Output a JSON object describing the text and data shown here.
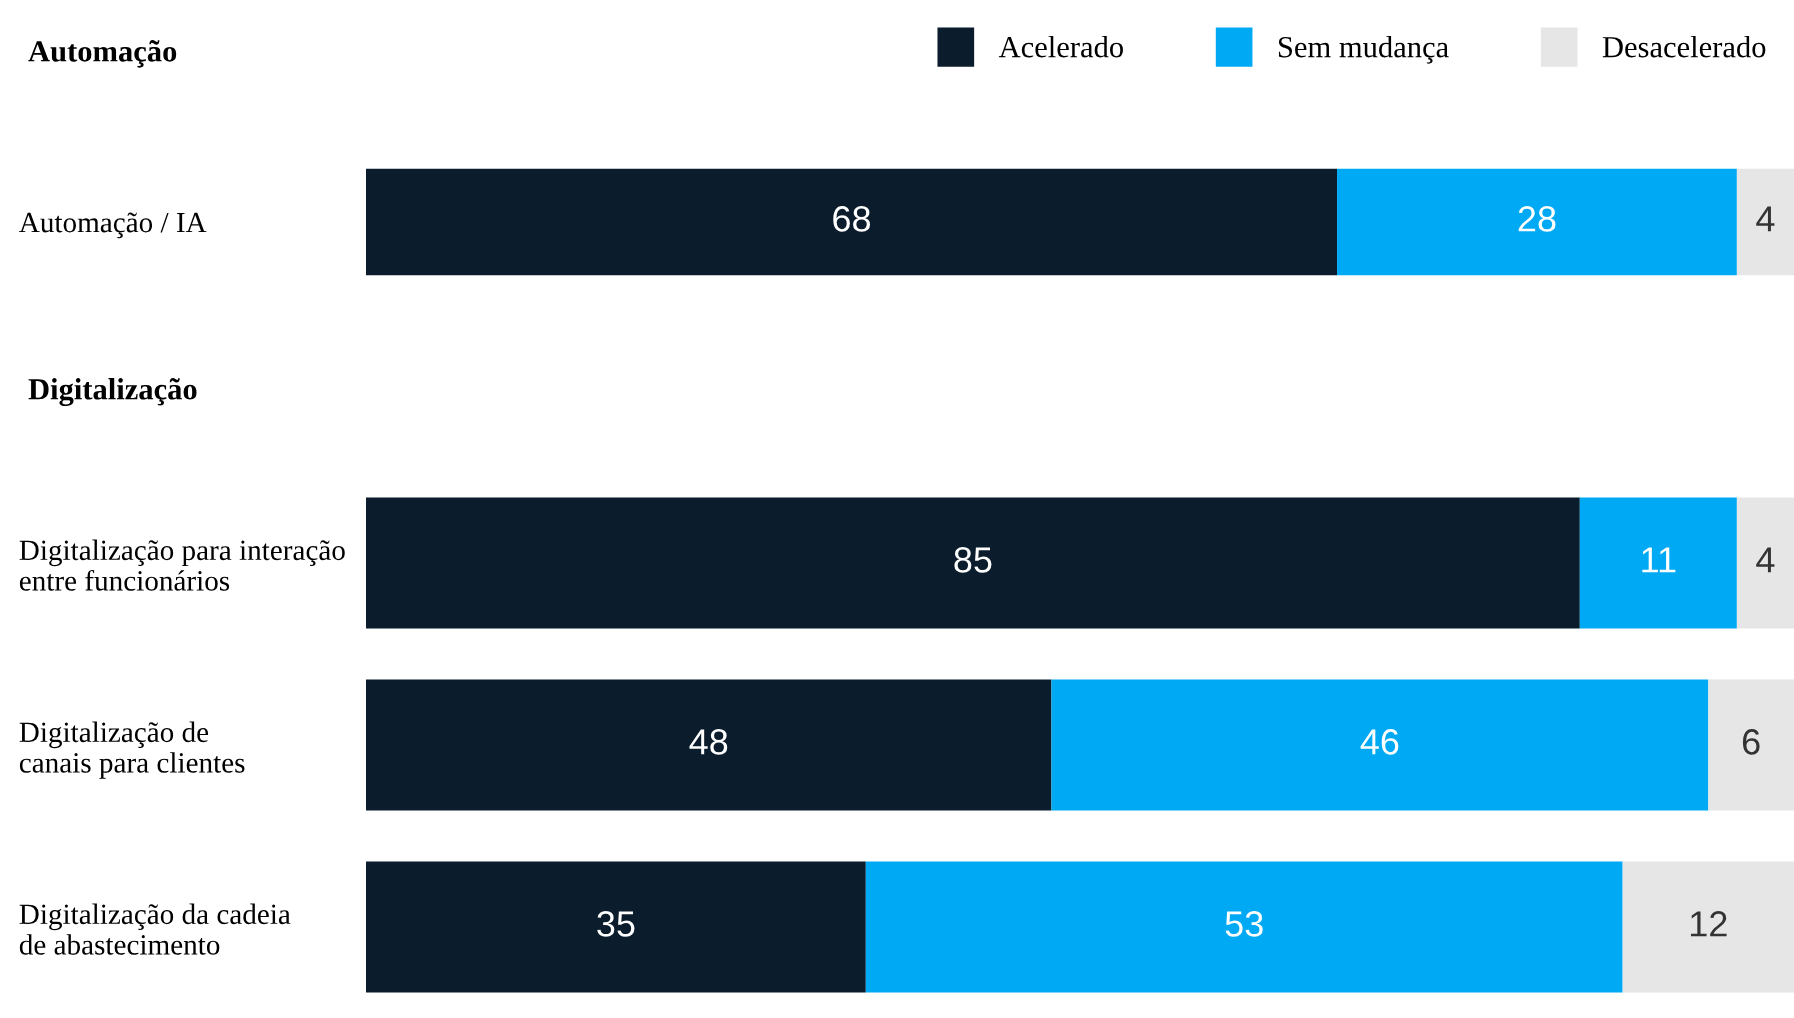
{
  "chart_data": [
    {
      "type": "bar",
      "orientation": "horizontal",
      "stacked": true,
      "data_labels": true,
      "legend": "top right",
      "title": "Automação",
      "categories": [
        "Automação / IA"
      ],
      "series": [
        {
          "name": "Acelerado",
          "color": "#0b1c2c",
          "values": [
            68
          ]
        },
        {
          "name": "Sem mudança",
          "color": "#00a9f4",
          "values": [
            28
          ]
        },
        {
          "name": "Desacelerado",
          "color": "#e6e6e6",
          "values": [
            4
          ]
        }
      ]
    },
    {
      "type": "bar",
      "orientation": "horizontal",
      "stacked": true,
      "data_labels": true,
      "title": "Digitalização",
      "categories": [
        "Digitalização para interação\nentre funcionários",
        "Digitalização de\ncanais para clientes",
        "Digitalização da cadeia\nde abastecimento"
      ],
      "series": [
        {
          "name": "Acelerado",
          "color": "#0b1c2c",
          "values": [
            85,
            48,
            35
          ]
        },
        {
          "name": "Sem mudança",
          "color": "#00a9f4",
          "values": [
            11,
            46,
            53
          ]
        },
        {
          "name": "Desacelerado",
          "color": "#e6e6e6",
          "values": [
            4,
            6,
            12
          ]
        }
      ]
    }
  ]
}
